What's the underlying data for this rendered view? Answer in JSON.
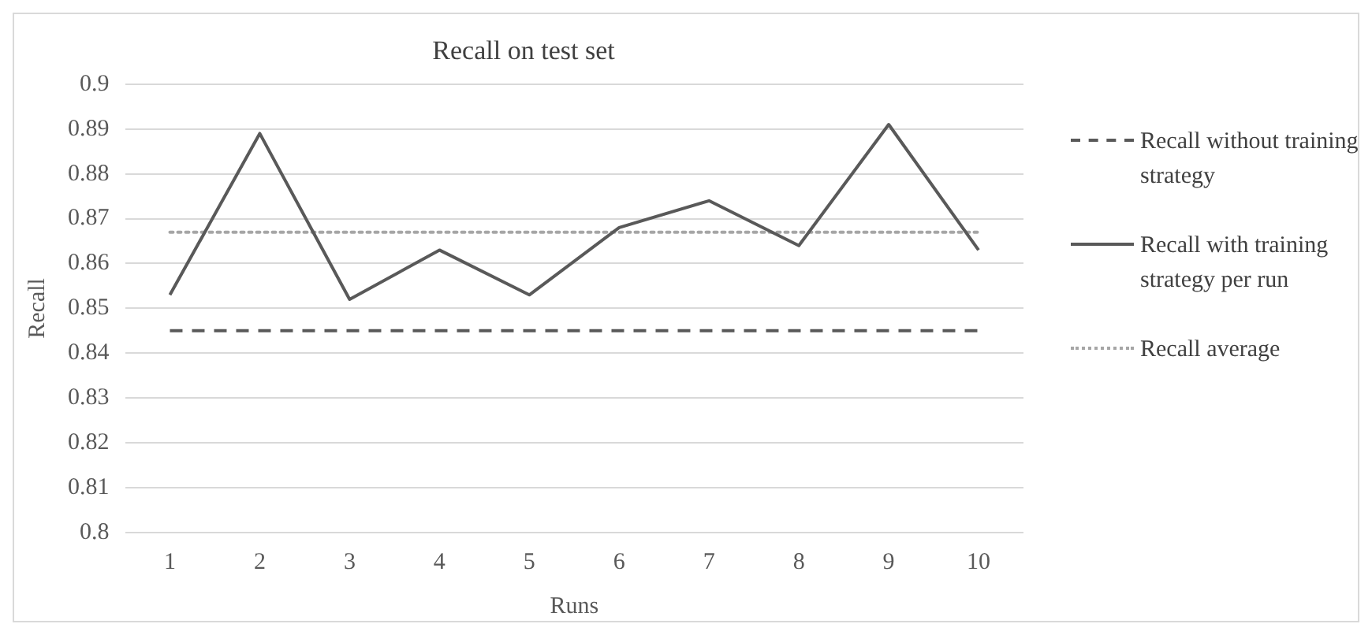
{
  "chart_data": {
    "type": "line",
    "title": "Recall on test set",
    "xlabel": "Runs",
    "ylabel": "Recall",
    "categories": [
      "1",
      "2",
      "3",
      "4",
      "5",
      "6",
      "7",
      "8",
      "9",
      "10"
    ],
    "series": [
      {
        "name": "Recall without training strategy",
        "color": "#595959",
        "line_style": "dashed",
        "values": [
          0.845,
          0.845,
          0.845,
          0.845,
          0.845,
          0.845,
          0.845,
          0.845,
          0.845,
          0.845
        ]
      },
      {
        "name": "Recall with training strategy per run",
        "color": "#595959",
        "line_style": "solid",
        "values": [
          0.853,
          0.889,
          0.852,
          0.863,
          0.853,
          0.868,
          0.874,
          0.864,
          0.891,
          0.863
        ]
      },
      {
        "name": "Recall average",
        "color": "#a6a6a6",
        "line_style": "dotted",
        "values": [
          0.867,
          0.867,
          0.867,
          0.867,
          0.867,
          0.867,
          0.867,
          0.867,
          0.867,
          0.867
        ]
      }
    ],
    "ylim": [
      0.8,
      0.9
    ],
    "yticks": [
      0.8,
      0.81,
      0.82,
      0.83,
      0.84,
      0.85,
      0.86,
      0.87,
      0.88,
      0.89,
      0.9
    ],
    "grid": "y",
    "legend": "right",
    "marker": "none"
  }
}
